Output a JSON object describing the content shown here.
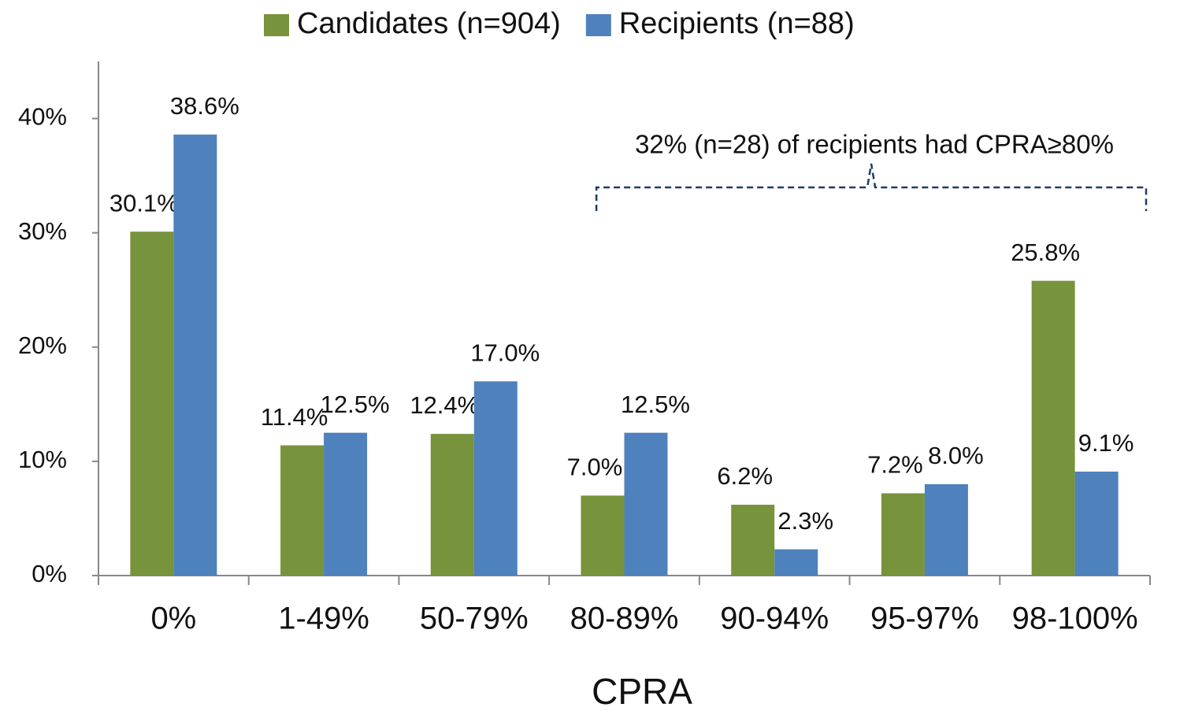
{
  "chart_data": {
    "type": "bar",
    "x_label": "CPRA",
    "annotation": "32% (n=28) of recipients had CPRA≥80%",
    "categories": [
      "0%",
      "1-49%",
      "50-79%",
      "80-89%",
      "90-94%",
      "95-97%",
      "98-100%"
    ],
    "series": [
      {
        "name": "Candidates (n=904)",
        "color": "#77933c",
        "values": [
          30.1,
          11.4,
          12.4,
          7.0,
          6.2,
          7.2,
          25.8
        ],
        "value_labels": [
          "30.1%",
          "11.4%",
          "12.4%",
          "7.0%",
          "6.2%",
          "7.2%",
          "25.8%"
        ]
      },
      {
        "name": "Recipients (n=88)",
        "color": "#4f81bd",
        "values": [
          38.6,
          12.5,
          17.0,
          12.5,
          2.3,
          8.0,
          9.1
        ],
        "value_labels": [
          "38.6%",
          "12.5%",
          "17.0%",
          "12.5%",
          "2.3%",
          "8.0%",
          "9.1%"
        ]
      }
    ],
    "ylim": [
      0,
      45
    ],
    "yticks": [
      {
        "value": 0,
        "label": "0%"
      },
      {
        "value": 10,
        "label": "10%"
      },
      {
        "value": 20,
        "label": "20%"
      },
      {
        "value": 30,
        "label": "30%"
      },
      {
        "value": 40,
        "label": "40%"
      }
    ],
    "grid": false,
    "legend": "top"
  }
}
